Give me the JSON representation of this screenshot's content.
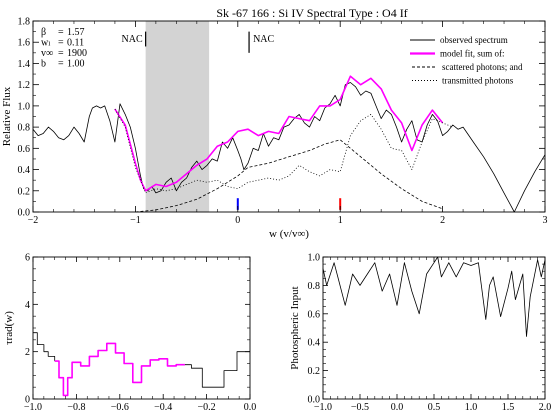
{
  "chart_data": [
    {
      "id": "main",
      "type": "line",
      "title": "Sk -67 166 : Si IV     Spectral Type : O4 If",
      "xlabel": "w (v/v∞)",
      "ylabel": "Relative Flux",
      "xlim": [
        -2,
        3
      ],
      "ylim": [
        0,
        1.8
      ],
      "xticks": [
        -2,
        -1,
        0,
        1,
        2,
        3
      ],
      "xtick_labels": [
        "−2",
        "−1",
        "0",
        "1",
        "2",
        "3"
      ],
      "yticks": [
        0,
        0.2,
        0.4,
        0.6,
        0.8,
        1.0,
        1.2,
        1.4,
        1.6,
        1.8
      ],
      "ytick_labels": [
        "0.0",
        "0.2",
        "0.4",
        "0.6",
        "0.8",
        "1.0",
        "1.2",
        "1.4",
        "1.6",
        "1.8"
      ],
      "grid": false,
      "legend_position": "top-right",
      "parameters": [
        {
          "label": "β",
          "value": "1.57"
        },
        {
          "label": "wₗ",
          "value": "0.11"
        },
        {
          "label": "v∞",
          "value": "1900"
        },
        {
          "label": "b",
          "value": "1.00"
        }
      ],
      "shaded_region": [
        -0.9,
        -0.28
      ],
      "nac_markers": [
        {
          "label": "NAC",
          "x": -0.9,
          "y_range": [
            1.56,
            1.7
          ]
        },
        {
          "label": "NAC",
          "x": 0.11,
          "y_range": [
            1.5,
            1.7
          ]
        }
      ],
      "rest_markers": [
        {
          "x": 0.0,
          "color": "#0000ff",
          "y_range": [
            0.02,
            0.13
          ]
        },
        {
          "x": 1.0,
          "color": "#ff0000",
          "y_range": [
            0.02,
            0.13
          ]
        }
      ],
      "series": [
        {
          "name": "observed spectrum",
          "color": "#000000",
          "x": [
            -2.0,
            -1.95,
            -1.9,
            -1.85,
            -1.8,
            -1.75,
            -1.7,
            -1.65,
            -1.6,
            -1.55,
            -1.5,
            -1.45,
            -1.42,
            -1.38,
            -1.34,
            -1.3,
            -1.25,
            -1.2,
            -1.15,
            -1.1,
            -1.05,
            -1.0,
            -0.95,
            -0.92,
            -0.88,
            -0.84,
            -0.8,
            -0.75,
            -0.7,
            -0.65,
            -0.6,
            -0.55,
            -0.5,
            -0.45,
            -0.4,
            -0.35,
            -0.3,
            -0.25,
            -0.2,
            -0.15,
            -0.1,
            -0.05,
            0.0,
            0.03,
            0.06,
            0.1,
            0.15,
            0.2,
            0.25,
            0.3,
            0.35,
            0.4,
            0.45,
            0.5,
            0.55,
            0.6,
            0.65,
            0.7,
            0.75,
            0.8,
            0.85,
            0.9,
            0.95,
            1.0,
            1.05,
            1.1,
            1.15,
            1.2,
            1.25,
            1.3,
            1.35,
            1.4,
            1.45,
            1.5,
            1.55,
            1.6,
            1.65,
            1.7,
            1.75,
            1.8,
            1.85,
            1.9,
            1.95,
            2.0,
            2.05,
            2.1,
            2.15,
            2.2,
            2.3,
            2.4,
            2.5,
            2.6,
            2.7,
            2.8,
            2.9,
            3.0
          ],
          "values": [
            0.78,
            0.72,
            0.74,
            0.8,
            0.76,
            0.7,
            0.68,
            0.72,
            0.8,
            0.74,
            0.66,
            0.9,
            0.98,
            1.0,
            0.98,
            1.0,
            0.86,
            0.66,
            1.02,
            0.92,
            0.8,
            0.6,
            0.34,
            0.22,
            0.2,
            0.24,
            0.18,
            0.2,
            0.28,
            0.32,
            0.2,
            0.28,
            0.32,
            0.42,
            0.48,
            0.4,
            0.44,
            0.5,
            0.48,
            0.66,
            0.6,
            0.7,
            0.58,
            0.5,
            0.4,
            0.46,
            0.6,
            0.58,
            0.74,
            0.62,
            0.7,
            0.68,
            0.8,
            0.82,
            0.88,
            0.92,
            0.84,
            0.8,
            0.9,
            0.86,
            0.98,
            1.02,
            1.1,
            1.0,
            1.2,
            1.22,
            1.18,
            1.1,
            1.14,
            1.12,
            1.0,
            0.88,
            0.96,
            0.92,
            0.8,
            0.66,
            0.78,
            0.86,
            0.68,
            0.66,
            0.82,
            0.92,
            0.86,
            0.72,
            0.76,
            0.82,
            0.78,
            0.8,
            0.66,
            0.52,
            0.36,
            0.18,
            0.0,
            0.2,
            0.38,
            0.54
          ]
        },
        {
          "name": "model fit, sum of:",
          "color": "#ff00ff",
          "x": [
            -1.2,
            -1.1,
            -1.0,
            -0.95,
            -0.9,
            -0.8,
            -0.7,
            -0.6,
            -0.5,
            -0.4,
            -0.3,
            -0.2,
            -0.1,
            0.0,
            0.1,
            0.2,
            0.3,
            0.4,
            0.5,
            0.6,
            0.7,
            0.8,
            0.9,
            1.0,
            1.1,
            1.2,
            1.3,
            1.4,
            1.5,
            1.6,
            1.7,
            1.8,
            1.9,
            2.0
          ],
          "values": [
            0.97,
            0.82,
            0.46,
            0.3,
            0.2,
            0.26,
            0.24,
            0.28,
            0.36,
            0.44,
            0.5,
            0.62,
            0.66,
            0.76,
            0.78,
            0.72,
            0.76,
            0.74,
            0.9,
            0.88,
            0.86,
            1.0,
            1.0,
            1.06,
            1.28,
            1.2,
            1.26,
            1.16,
            0.96,
            0.84,
            0.58,
            0.82,
            0.96,
            0.84
          ]
        },
        {
          "name": "scattered photons; and",
          "color": "#000000",
          "dash": "3,2",
          "x": [
            -1.0,
            -0.8,
            -0.6,
            -0.4,
            -0.2,
            0.0,
            0.1,
            0.3,
            0.5,
            0.7,
            0.85,
            1.0,
            1.2,
            1.4,
            1.6,
            1.8,
            2.0
          ],
          "values": [
            0.0,
            0.02,
            0.06,
            0.12,
            0.22,
            0.34,
            0.42,
            0.46,
            0.52,
            0.58,
            0.64,
            0.68,
            0.52,
            0.36,
            0.22,
            0.1,
            0.03
          ]
        },
        {
          "name": "transmitted photons",
          "color": "#000000",
          "dash": "1,2",
          "x": [
            -1.2,
            -1.1,
            -1.0,
            -0.9,
            -0.8,
            -0.7,
            -0.6,
            -0.5,
            -0.4,
            -0.3,
            -0.2,
            -0.1,
            0.0,
            0.1,
            0.2,
            0.3,
            0.4,
            0.5,
            0.6,
            0.7,
            0.8,
            0.9,
            1.0,
            1.1,
            1.2,
            1.3,
            1.4,
            1.5,
            1.6,
            1.7,
            1.8,
            1.9,
            2.0,
            2.1
          ],
          "values": [
            0.97,
            0.8,
            0.42,
            0.18,
            0.22,
            0.2,
            0.22,
            0.26,
            0.3,
            0.28,
            0.3,
            0.24,
            0.22,
            0.28,
            0.3,
            0.32,
            0.3,
            0.34,
            0.44,
            0.38,
            0.34,
            0.4,
            0.38,
            0.72,
            0.86,
            0.92,
            0.78,
            0.6,
            0.58,
            0.4,
            0.66,
            0.88,
            0.84,
            0.8
          ]
        }
      ]
    },
    {
      "id": "tau",
      "type": "line",
      "xlabel": "w (v/v∞)",
      "ylabel": "τrad(w)",
      "xlim": [
        -1.0,
        0.0
      ],
      "ylim": [
        0,
        6
      ],
      "xticks": [
        -1.0,
        -0.8,
        -0.6,
        -0.4,
        -0.2,
        0.0
      ],
      "xtick_labels": [
        "−1.0",
        "−0.8",
        "−0.6",
        "−0.4",
        "−0.2",
        "0.0"
      ],
      "yticks": [
        0,
        2,
        4,
        6
      ],
      "ytick_labels": [
        "0",
        "2",
        "4",
        "6"
      ],
      "grid": false,
      "series": [
        {
          "name": "",
          "color": "#000000",
          "x": [
            -1.0,
            -0.98,
            -0.98,
            -0.95,
            -0.95,
            -0.93,
            -0.93,
            -0.9,
            -0.9
          ],
          "values": [
            2.8,
            2.8,
            2.3,
            2.3,
            2.0,
            2.0,
            1.8,
            1.8,
            1.6
          ],
          "step": true
        },
        {
          "name": "",
          "color": "#ff00ff",
          "x": [
            -0.9,
            -0.88,
            -0.88,
            -0.86,
            -0.86,
            -0.84,
            -0.84,
            -0.82,
            -0.82,
            -0.78,
            -0.78,
            -0.74,
            -0.74,
            -0.7,
            -0.7,
            -0.66,
            -0.66,
            -0.62,
            -0.62,
            -0.58,
            -0.58,
            -0.54,
            -0.54,
            -0.5,
            -0.5,
            -0.46,
            -0.46,
            -0.42,
            -0.42,
            -0.38,
            -0.38,
            -0.34,
            -0.34,
            -0.3
          ],
          "values": [
            1.6,
            1.6,
            0.9,
            0.9,
            0.15,
            0.15,
            0.9,
            0.9,
            1.55,
            1.55,
            1.4,
            1.4,
            1.8,
            1.8,
            2.05,
            2.05,
            2.35,
            2.35,
            1.95,
            1.95,
            1.5,
            1.5,
            0.7,
            0.7,
            1.4,
            1.4,
            1.65,
            1.65,
            1.7,
            1.7,
            1.4,
            1.4,
            1.45,
            1.45
          ],
          "step": true
        },
        {
          "name": "",
          "color": "#000000",
          "x": [
            -0.3,
            -0.27,
            -0.27,
            -0.22,
            -0.22,
            -0.12,
            -0.12,
            -0.06,
            -0.06,
            0.0
          ],
          "values": [
            1.45,
            1.45,
            1.3,
            1.3,
            0.5,
            0.5,
            1.2,
            1.2,
            2.0,
            2.0
          ],
          "step": true
        }
      ]
    },
    {
      "id": "photo",
      "type": "line",
      "xlabel": "w (v/v∞)",
      "ylabel": "Photospheric Input",
      "xlim": [
        -1.0,
        2.0
      ],
      "ylim": [
        0,
        1.0
      ],
      "xticks": [
        -1.0,
        -0.5,
        0.0,
        0.5,
        1.0,
        1.5,
        2.0
      ],
      "xtick_labels": [
        "−1.0",
        "−0.5",
        "0.0",
        "0.5",
        "1.0",
        "1.5",
        "2.0"
      ],
      "yticks": [
        0,
        0.2,
        0.4,
        0.6,
        0.8,
        1.0
      ],
      "ytick_labels": [
        "0.0",
        "0.2",
        "0.4",
        "0.6",
        "0.8",
        "1.0"
      ],
      "grid": false,
      "series": [
        {
          "name": "",
          "color": "#000000",
          "x": [
            -1.0,
            -0.95,
            -0.9,
            -0.85,
            -0.8,
            -0.7,
            -0.6,
            -0.5,
            -0.4,
            -0.3,
            -0.2,
            -0.1,
            0.0,
            0.1,
            0.2,
            0.3,
            0.4,
            0.5,
            0.55,
            0.6,
            0.7,
            0.8,
            0.9,
            1.0,
            1.1,
            1.2,
            1.25,
            1.3,
            1.4,
            1.5,
            1.55,
            1.6,
            1.7,
            1.75,
            1.8,
            1.9,
            1.95,
            2.0
          ],
          "values": [
            0.92,
            0.8,
            0.88,
            0.96,
            0.86,
            0.66,
            0.88,
            0.8,
            0.88,
            0.96,
            0.76,
            0.88,
            0.66,
            0.96,
            0.76,
            0.6,
            0.88,
            0.96,
            1.0,
            0.86,
            0.96,
            0.86,
            0.96,
            0.94,
            0.96,
            0.56,
            0.8,
            0.86,
            0.58,
            0.78,
            0.9,
            0.7,
            0.88,
            0.44,
            0.72,
            0.98,
            0.86,
            0.98
          ]
        }
      ]
    }
  ]
}
